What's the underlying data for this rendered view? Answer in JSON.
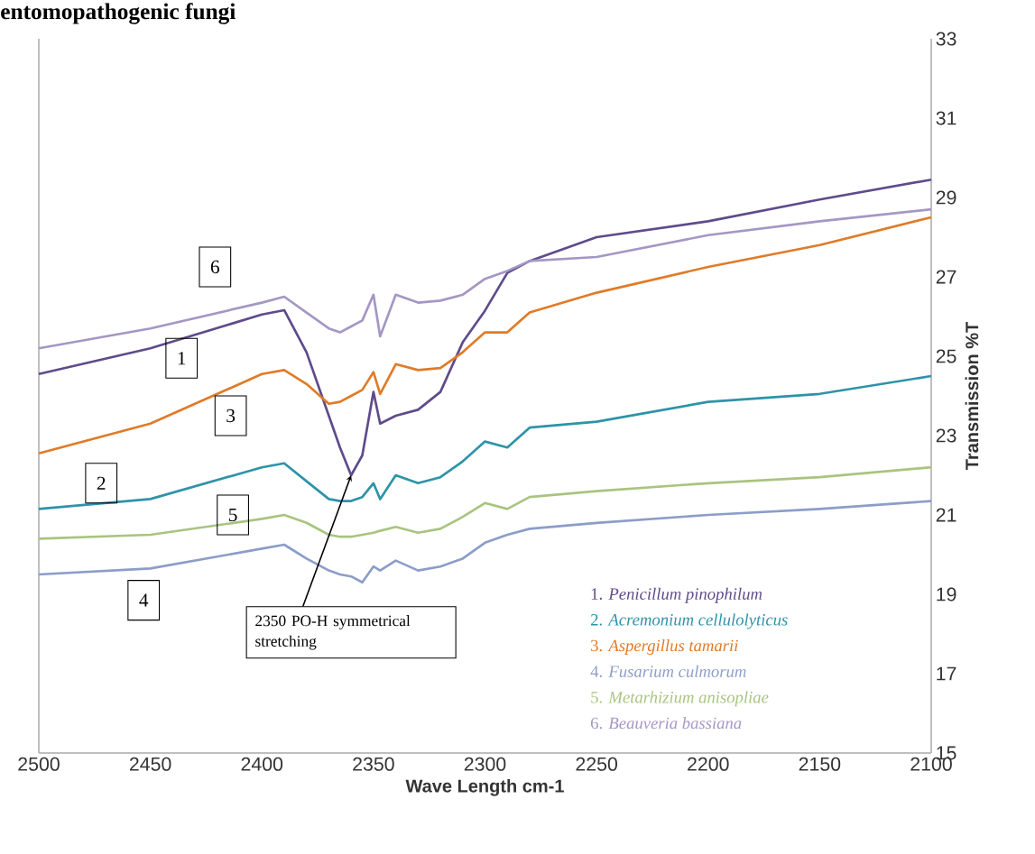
{
  "chart_data": {
    "type": "line",
    "title": "entomopathogenic fungi",
    "xlabel": "Wave Length cm-1",
    "ylabel": "Transmission %T",
    "xlim": [
      2500,
      2100
    ],
    "xticks": [
      2500,
      2450,
      2400,
      2350,
      2300,
      2250,
      2200,
      2150,
      2100
    ],
    "ylim": [
      15,
      33
    ],
    "yticks": [
      15,
      17,
      19,
      21,
      23,
      25,
      27,
      29,
      31,
      33
    ],
    "legend": "bottom right",
    "x": [
      2500,
      2450,
      2400,
      2390,
      2380,
      2370,
      2365,
      2360,
      2355,
      2350,
      2347,
      2340,
      2330,
      2320,
      2310,
      2300,
      2290,
      2280,
      2250,
      2200,
      2150,
      2100
    ],
    "series": [
      {
        "name": "1. *Penicillum pinophilum*",
        "color": "#5f4b8b",
        "values": [
          24.55,
          25.2,
          26.05,
          26.16,
          25.1,
          23.5,
          22.7,
          22.0,
          22.5,
          24.1,
          23.3,
          23.5,
          23.65,
          24.1,
          25.35,
          26.15,
          27.1,
          27.4,
          28.0,
          28.4,
          28.95,
          29.45
        ]
      },
      {
        "name": "2. *Acremonium cellulolyticus*",
        "color": "#2e93a8",
        "values": [
          21.15,
          21.4,
          22.2,
          22.3,
          21.85,
          21.4,
          21.35,
          21.35,
          21.45,
          21.8,
          21.4,
          22.0,
          21.8,
          21.95,
          22.35,
          22.85,
          22.7,
          23.2,
          23.35,
          23.85,
          24.05,
          24.5
        ]
      },
      {
        "name": "3. *Aspergillus tamarii*",
        "color": "#e07b28",
        "values": [
          22.55,
          23.3,
          24.55,
          24.65,
          24.3,
          23.8,
          23.85,
          24.0,
          24.15,
          24.6,
          24.05,
          24.8,
          24.65,
          24.7,
          25.1,
          25.6,
          25.6,
          26.1,
          26.6,
          27.25,
          27.8,
          28.5
        ]
      },
      {
        "name": "4. *Fusarium culmorum*",
        "color": "#8c9dc8",
        "values": [
          19.5,
          19.65,
          20.15,
          20.25,
          19.9,
          19.6,
          19.5,
          19.45,
          19.3,
          19.7,
          19.6,
          19.85,
          19.6,
          19.7,
          19.9,
          20.3,
          20.5,
          20.65,
          20.8,
          21.0,
          21.15,
          21.35
        ]
      },
      {
        "name": "5. *Metarhizium anisopliae*",
        "color": "#a9c47f",
        "values": [
          20.4,
          20.5,
          20.9,
          21.0,
          20.8,
          20.5,
          20.45,
          20.45,
          20.5,
          20.55,
          20.6,
          20.7,
          20.55,
          20.65,
          20.95,
          21.3,
          21.15,
          21.45,
          21.6,
          21.8,
          21.95,
          22.2
        ]
      },
      {
        "name": "6. *Beauveria bassiana*",
        "color": "#a597c4",
        "values": [
          25.2,
          25.7,
          26.35,
          26.5,
          26.1,
          25.7,
          25.6,
          25.75,
          25.9,
          26.55,
          25.5,
          26.55,
          26.35,
          26.4,
          26.55,
          26.95,
          27.15,
          27.4,
          27.5,
          28.05,
          28.4,
          28.7
        ]
      }
    ],
    "annotations": [
      {
        "text": "1",
        "x": 2436,
        "y": 24.95
      },
      {
        "text": "2",
        "x": 2472,
        "y": 21.8
      },
      {
        "text": "3",
        "x": 2414,
        "y": 23.5
      },
      {
        "text": "4",
        "x": 2453,
        "y": 18.85
      },
      {
        "text": "5",
        "x": 2413,
        "y": 21.0
      },
      {
        "text": "6",
        "x": 2421,
        "y": 27.25
      },
      {
        "text": "2350 PO-H symmetrical stretching",
        "x": 2360,
        "y": 22.0
      }
    ]
  }
}
